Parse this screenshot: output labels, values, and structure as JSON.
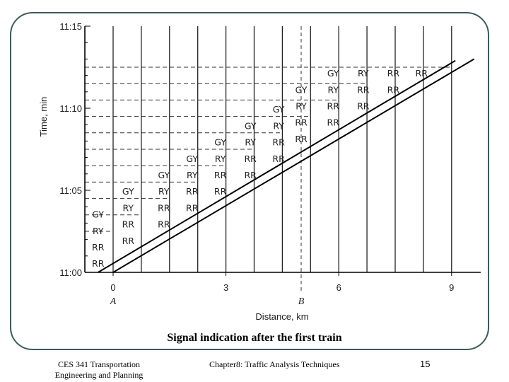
{
  "slide": {
    "caption": "Signal indication after the first train",
    "footer_left_line1": "CES 341 Transportation",
    "footer_left_line2": "Engineering and Planning",
    "footer_center": "Chapter8: Traffic Analysis Techniques",
    "page_number": "15"
  },
  "chart_data": {
    "type": "line",
    "title": "",
    "xlabel": "Distance, km",
    "ylabel": "Time, min",
    "xlim": [
      -1,
      9.5
    ],
    "ylim": [
      0,
      15
    ],
    "x_ticks": [
      {
        "value": 0,
        "label": "0"
      },
      {
        "value": 3,
        "label": "3"
      },
      {
        "value": 6,
        "label": "6"
      },
      {
        "value": 9,
        "label": "9"
      }
    ],
    "y_ticks": [
      {
        "value": 0,
        "label": "11:00"
      },
      {
        "value": 5,
        "label": "11:05"
      },
      {
        "value": 10,
        "label": "11:10"
      },
      {
        "value": 15,
        "label": "11:15"
      }
    ],
    "point_labels": [
      {
        "x": 0,
        "text": "A"
      },
      {
        "x": 5,
        "text": "B"
      }
    ],
    "signal_positions_km": [
      -0.75,
      0,
      0.75,
      1.5,
      2.25,
      3,
      3.75,
      4.5,
      5.25,
      6,
      6.75,
      7.5,
      8.25,
      9
    ],
    "station_B_km": 5,
    "grid": "minute gridlines (dashed) and signal locations",
    "series": [
      {
        "points": [
          [
            -0.4,
            0
          ],
          [
            9.1,
            12.9
          ]
        ]
      },
      {
        "points": [
          [
            0,
            0
          ],
          [
            9.6,
            13
          ]
        ]
      }
    ],
    "signal_aspects": [
      {
        "x": -0.4,
        "y": 0.55,
        "text": "RR"
      },
      {
        "x": -0.4,
        "y": 1.55,
        "text": "RR"
      },
      {
        "x": -0.4,
        "y": 2.55,
        "text": "RY"
      },
      {
        "x": -0.4,
        "y": 3.55,
        "text": "GY"
      },
      {
        "x": 0.4,
        "y": 1.95,
        "text": "RR"
      },
      {
        "x": 0.4,
        "y": 2.95,
        "text": "RR"
      },
      {
        "x": 0.4,
        "y": 3.95,
        "text": "RY"
      },
      {
        "x": 0.4,
        "y": 4.95,
        "text": "GY"
      },
      {
        "x": 1.35,
        "y": 2.95,
        "text": "RR"
      },
      {
        "x": 1.35,
        "y": 3.95,
        "text": "RR"
      },
      {
        "x": 1.35,
        "y": 4.95,
        "text": "RY"
      },
      {
        "x": 1.35,
        "y": 5.95,
        "text": "GY"
      },
      {
        "x": 2.1,
        "y": 3.95,
        "text": "RR"
      },
      {
        "x": 2.1,
        "y": 4.95,
        "text": "RR"
      },
      {
        "x": 2.1,
        "y": 5.95,
        "text": "RY"
      },
      {
        "x": 2.1,
        "y": 6.95,
        "text": "GY"
      },
      {
        "x": 2.85,
        "y": 4.95,
        "text": "RR"
      },
      {
        "x": 2.85,
        "y": 5.95,
        "text": "RR"
      },
      {
        "x": 2.85,
        "y": 6.95,
        "text": "RY"
      },
      {
        "x": 2.85,
        "y": 7.95,
        "text": "GY"
      },
      {
        "x": 3.65,
        "y": 5.95,
        "text": "RR"
      },
      {
        "x": 3.65,
        "y": 6.95,
        "text": "RR"
      },
      {
        "x": 3.65,
        "y": 7.95,
        "text": "RY"
      },
      {
        "x": 3.65,
        "y": 8.95,
        "text": "GY"
      },
      {
        "x": 4.4,
        "y": 6.95,
        "text": "RR"
      },
      {
        "x": 4.4,
        "y": 7.95,
        "text": "RR"
      },
      {
        "x": 4.4,
        "y": 8.95,
        "text": "RY"
      },
      {
        "x": 4.4,
        "y": 9.95,
        "text": "GY"
      },
      {
        "x": 5.0,
        "y": 8.15,
        "text": "RR"
      },
      {
        "x": 5.0,
        "y": 9.15,
        "text": "RR"
      },
      {
        "x": 5.0,
        "y": 10.15,
        "text": "RY"
      },
      {
        "x": 5.0,
        "y": 11.15,
        "text": "GY"
      },
      {
        "x": 5.85,
        "y": 9.15,
        "text": "RR"
      },
      {
        "x": 5.85,
        "y": 10.15,
        "text": "RR"
      },
      {
        "x": 5.85,
        "y": 11.15,
        "text": "RY"
      },
      {
        "x": 5.85,
        "y": 12.15,
        "text": "GY"
      },
      {
        "x": 6.65,
        "y": 10.15,
        "text": "RR"
      },
      {
        "x": 6.65,
        "y": 11.15,
        "text": "RR"
      },
      {
        "x": 6.65,
        "y": 12.15,
        "text": "RY"
      },
      {
        "x": 7.45,
        "y": 11.15,
        "text": "RR"
      },
      {
        "x": 7.45,
        "y": 12.15,
        "text": "RR"
      },
      {
        "x": 8.2,
        "y": 12.15,
        "text": "RR"
      }
    ],
    "dash_rows": [
      {
        "y": 0.5,
        "x_end": -0.75
      },
      {
        "y": 1.5,
        "x_end": -0.75
      },
      {
        "y": 2.5,
        "x_end": 0
      },
      {
        "y": 3.5,
        "x_end": 0.75
      },
      {
        "y": 4.5,
        "x_end": 1.5
      },
      {
        "y": 5.5,
        "x_end": 2.25
      },
      {
        "y": 6.5,
        "x_end": 3
      },
      {
        "y": 7.5,
        "x_end": 3.75
      },
      {
        "y": 8.5,
        "x_end": 4.5
      },
      {
        "y": 9.5,
        "x_end": 5.25
      },
      {
        "y": 10.5,
        "x_end": 6
      },
      {
        "y": 11.5,
        "x_end": 6.75
      },
      {
        "y": 12.5,
        "x_end": 9
      }
    ]
  }
}
